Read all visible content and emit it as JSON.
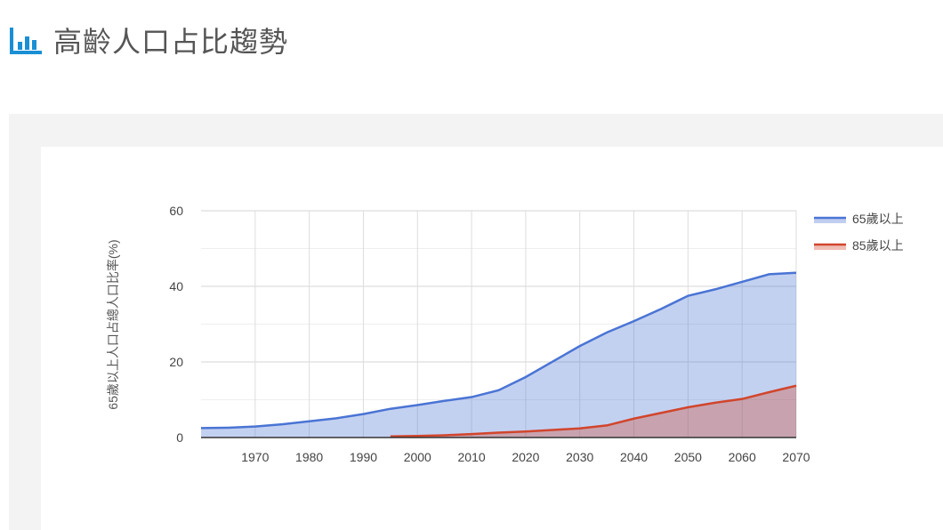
{
  "header": {
    "title": "高齡人口占比趨勢"
  },
  "chart_data": {
    "type": "area",
    "y_label": "65歲以上人口占總人口比率(%)",
    "x": [
      1960,
      1965,
      1970,
      1975,
      1980,
      1985,
      1990,
      1995,
      2000,
      2005,
      2010,
      2015,
      2020,
      2025,
      2030,
      2035,
      2040,
      2045,
      2050,
      2055,
      2060,
      2065,
      2070
    ],
    "series": [
      {
        "name": "65歲以上",
        "color": "#4a74d4",
        "values": [
          2.5,
          2.6,
          2.9,
          3.5,
          4.3,
          5.1,
          6.2,
          7.6,
          8.6,
          9.7,
          10.7,
          12.5,
          16.0,
          20.1,
          24.2,
          27.8,
          30.8,
          34.0,
          37.5,
          39.2,
          41.2,
          43.2,
          43.6
        ]
      },
      {
        "name": "85歲以上",
        "color": "#d1452c",
        "values": [
          null,
          null,
          null,
          null,
          null,
          null,
          null,
          0.3,
          0.4,
          0.6,
          0.9,
          1.3,
          1.6,
          2.0,
          2.4,
          3.2,
          5.0,
          6.5,
          8.0,
          9.2,
          10.2,
          12.0,
          13.7
        ]
      }
    ],
    "xlim": [
      1960,
      2070
    ],
    "xticks": [
      1970,
      1980,
      1990,
      2000,
      2010,
      2020,
      2030,
      2040,
      2050,
      2060,
      2070
    ],
    "ylim": [
      0,
      60
    ],
    "yticks": [
      0,
      20,
      40,
      60
    ],
    "minor_yticks": [
      10,
      30,
      50
    ],
    "grid": true,
    "legend": "right"
  }
}
